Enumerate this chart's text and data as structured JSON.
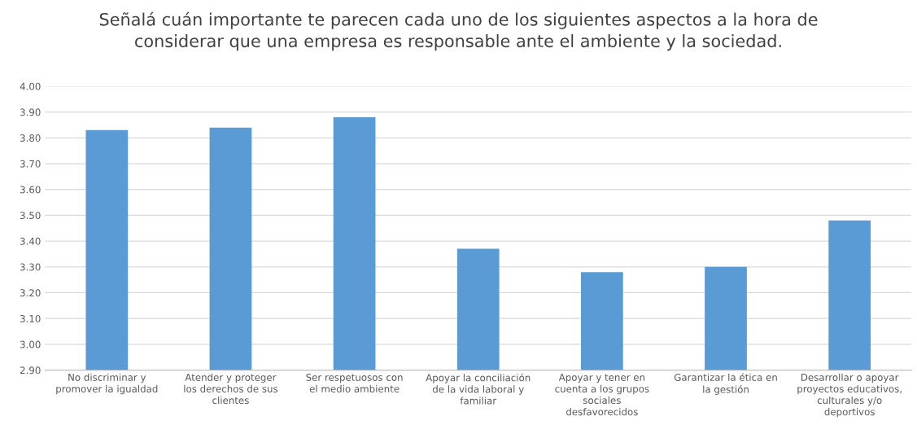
{
  "chart_data": {
    "type": "bar",
    "title": "Señalá cuán importante te parecen cada uno de los siguientes aspectos a la hora de\nconsiderar que una empresa es responsable ante el ambiente y la sociedad.",
    "categories": [
      "No discriminar y\npromover la igualdad",
      "Atender y proteger\nlos derechos de sus\nclientes",
      "Ser respetuosos con\nel medio ambiente",
      "Apoyar la conciliación\nde la vida laboral y\nfamiliar",
      "Apoyar y tener en\ncuenta a los grupos\nsociales\ndesfavorecidos",
      "Garantizar la ética en\nla gestión",
      "Desarrollar o apoyar\nproyectos educativos,\nculturales y/o\ndeportivos"
    ],
    "values": [
      3.83,
      3.84,
      3.88,
      3.37,
      3.28,
      3.3,
      3.48
    ],
    "color": "#5b9bd5",
    "ylim": [
      2.9,
      4.0
    ],
    "yticks": [
      {
        "value": 2.9,
        "label": "2.90"
      },
      {
        "value": 3.0,
        "label": "3.00"
      },
      {
        "value": 3.1,
        "label": "3.10"
      },
      {
        "value": 3.2,
        "label": "3.20"
      },
      {
        "value": 3.3,
        "label": "3.30"
      },
      {
        "value": 3.4,
        "label": "3.40"
      },
      {
        "value": 3.5,
        "label": "3.50"
      },
      {
        "value": 3.6,
        "label": "3.60"
      },
      {
        "value": 3.7,
        "label": "3.70"
      },
      {
        "value": 3.8,
        "label": "3.80"
      },
      {
        "value": 3.9,
        "label": "3.90"
      },
      {
        "value": 4.0,
        "label": "4.00"
      }
    ],
    "grid": "y"
  }
}
